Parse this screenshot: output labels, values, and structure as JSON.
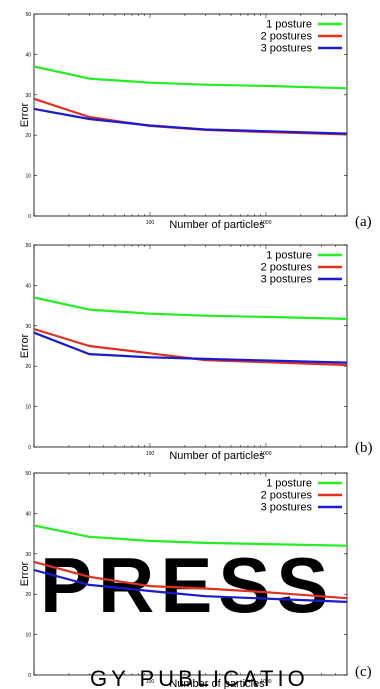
{
  "chart_data": [
    {
      "type": "line",
      "panel_label": "(a)",
      "xlabel": "Number of particles",
      "ylabel": "Error",
      "xscale": "log",
      "xlim": [
        10,
        5000
      ],
      "ylim": [
        0,
        50
      ],
      "yticks": [
        "0",
        "10",
        "20",
        "30",
        "40",
        "50"
      ],
      "xticks": [
        {
          "value": 100,
          "label": "100"
        },
        {
          "value": 1000,
          "label": "1000"
        }
      ],
      "legend_position": "top-right",
      "x": [
        10,
        30,
        100,
        300,
        1000,
        5000
      ],
      "series": [
        {
          "name": "1 posture",
          "color": "#22ee22",
          "values": [
            37.0,
            34.0,
            33.0,
            32.5,
            32.2,
            31.6
          ]
        },
        {
          "name": "2 postures",
          "color": "#e03020",
          "values": [
            29.0,
            24.5,
            22.3,
            21.3,
            20.8,
            20.2
          ]
        },
        {
          "name": "3 postures",
          "color": "#1a1ad0",
          "values": [
            26.5,
            24.0,
            22.4,
            21.4,
            21.0,
            20.4
          ]
        }
      ]
    },
    {
      "type": "line",
      "panel_label": "(b)",
      "xlabel": "Number of particles",
      "ylabel": "Error",
      "xscale": "log",
      "xlim": [
        10,
        5000
      ],
      "ylim": [
        0,
        50
      ],
      "yticks": [
        "0",
        "10",
        "20",
        "30",
        "40",
        "50"
      ],
      "xticks": [
        {
          "value": 100,
          "label": "100"
        },
        {
          "value": 1000,
          "label": "1000"
        }
      ],
      "legend_position": "top-right",
      "x": [
        10,
        30,
        100,
        300,
        1000,
        5000
      ],
      "series": [
        {
          "name": "1 posture",
          "color": "#22ee22",
          "values": [
            37.0,
            34.0,
            33.0,
            32.5,
            32.2,
            31.7
          ]
        },
        {
          "name": "2 postures",
          "color": "#e03020",
          "values": [
            29.2,
            25.0,
            23.2,
            21.5,
            21.0,
            20.3
          ]
        },
        {
          "name": "3 postures",
          "color": "#1a1ad0",
          "values": [
            28.3,
            23.0,
            22.2,
            21.8,
            21.4,
            20.9
          ]
        }
      ]
    },
    {
      "type": "line",
      "panel_label": "(c)",
      "xlabel": "Number of particles",
      "ylabel": "Error",
      "xscale": "log",
      "xlim": [
        10,
        5000
      ],
      "ylim": [
        0,
        50
      ],
      "yticks": [
        "0",
        "10",
        "20",
        "30",
        "40",
        "50"
      ],
      "xticks": [
        {
          "value": 100,
          "label": "100"
        },
        {
          "value": 1000,
          "label": "1000"
        }
      ],
      "legend_position": "top-right",
      "x": [
        10,
        30,
        100,
        300,
        1000,
        5000
      ],
      "series": [
        {
          "name": "1 posture",
          "color": "#22ee22",
          "values": [
            37.0,
            34.2,
            33.2,
            32.7,
            32.4,
            32.0
          ]
        },
        {
          "name": "2 postures",
          "color": "#e03020",
          "values": [
            28.0,
            24.3,
            22.0,
            21.4,
            20.5,
            19.0
          ]
        },
        {
          "name": "3 postures",
          "color": "#1a1ad0",
          "values": [
            26.0,
            22.3,
            20.8,
            19.5,
            18.9,
            18.1
          ]
        }
      ]
    }
  ]
}
